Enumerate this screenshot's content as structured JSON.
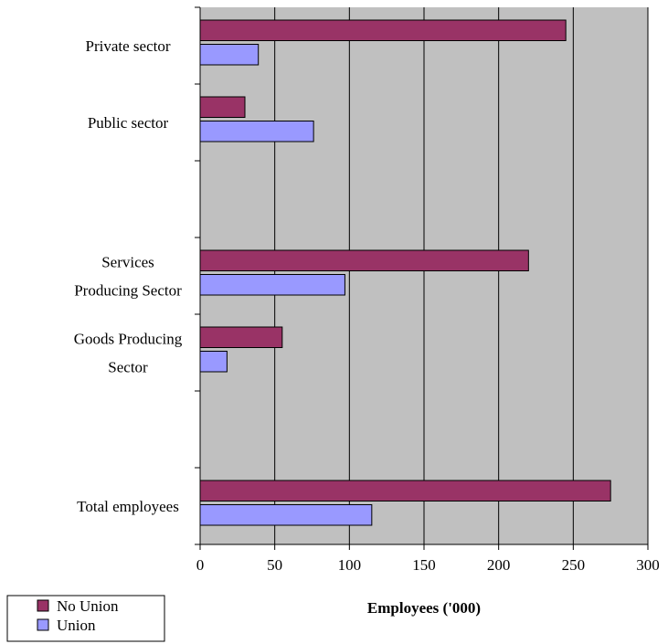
{
  "chart_data": {
    "type": "bar",
    "orientation": "horizontal",
    "title": "",
    "xlabel": "Employees ('000)",
    "ylabel": "",
    "xlim": [
      0,
      300
    ],
    "xticks": [
      "0",
      "50",
      "100",
      "150",
      "200",
      "250",
      "300"
    ],
    "grid": true,
    "legend_position": "bottom-left",
    "categories": [
      {
        "label_lines": [
          "Private sector"
        ]
      },
      {
        "label_lines": [
          "Public sector"
        ]
      },
      {
        "label_lines": [
          ""
        ]
      },
      {
        "label_lines": [
          "Services",
          "Producing Sector"
        ]
      },
      {
        "label_lines": [
          "Goods Producing",
          "Sector"
        ]
      },
      {
        "label_lines": [
          ""
        ]
      },
      {
        "label_lines": [
          "Total employees"
        ]
      }
    ],
    "series": [
      {
        "name": "No Union",
        "color": "#993366",
        "values": [
          245,
          30,
          null,
          220,
          55,
          null,
          275
        ]
      },
      {
        "name": "Union",
        "color": "#9999FF",
        "values": [
          39,
          76,
          null,
          97,
          18,
          null,
          115
        ]
      }
    ],
    "plot_background": "#C0C0C0"
  }
}
